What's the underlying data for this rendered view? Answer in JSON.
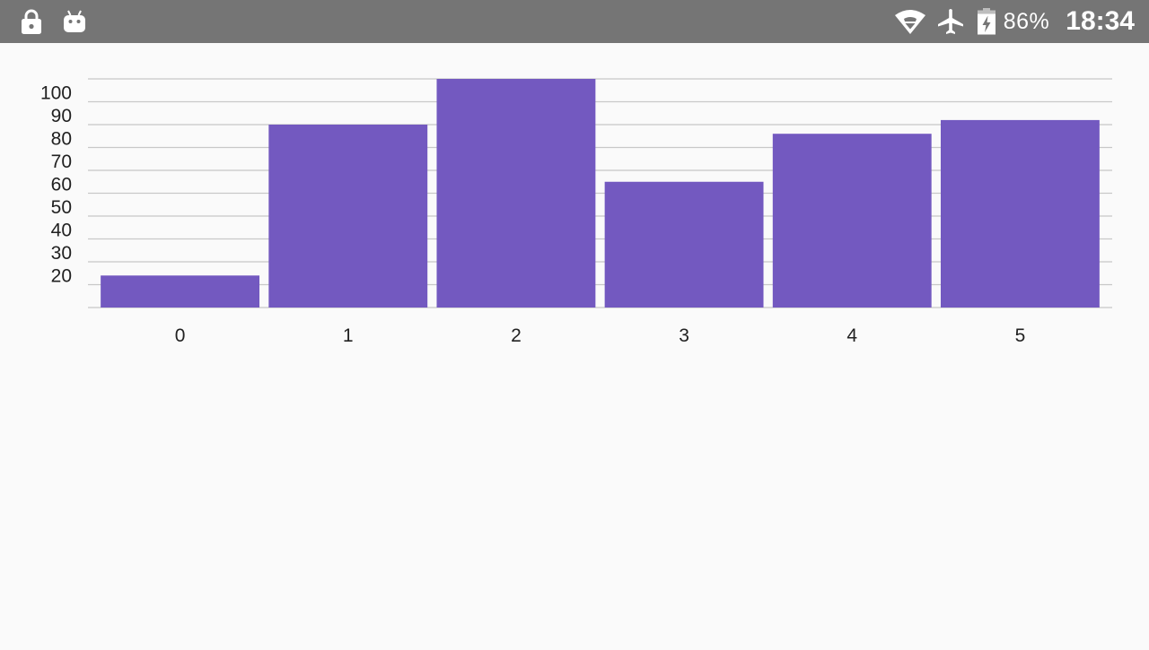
{
  "status_bar": {
    "left_icons": [
      "lock-icon",
      "android-debug-icon"
    ],
    "right_icons": [
      "wifi-icon",
      "airplane-mode-icon",
      "battery-charging-icon"
    ],
    "battery_percent": "86%",
    "time": "18:34",
    "background_color": "#757575",
    "icon_color": "#ffffff"
  },
  "chart_data": {
    "type": "bar",
    "categories": [
      "0",
      "1",
      "2",
      "3",
      "4",
      "5"
    ],
    "values": [
      24,
      90,
      110,
      65,
      86,
      92
    ],
    "y_ticks": [
      20,
      30,
      40,
      50,
      60,
      70,
      80,
      90,
      100
    ],
    "ylim": [
      10,
      110
    ],
    "title": "",
    "xlabel": "",
    "ylabel": "",
    "grid": true,
    "legend": "none",
    "bar_color": "#7359c0",
    "grid_color": "#c8c8c8"
  }
}
